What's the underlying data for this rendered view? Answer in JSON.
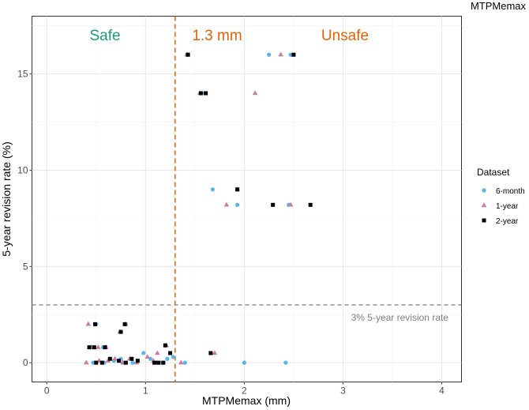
{
  "chart_data": {
    "type": "scatter",
    "title": "MTPMemax",
    "xlabel": "MTPMemax (mm)",
    "ylabel": "5-year revision rate (%)",
    "xlim": [
      -0.15,
      4.2
    ],
    "ylim": [
      -1.0,
      18.0
    ],
    "xticks": [
      0,
      1,
      2,
      3,
      4
    ],
    "yticks": [
      0,
      5,
      10,
      15
    ],
    "grid": true,
    "legend": {
      "title": "Dataset",
      "position": "right",
      "entries": [
        {
          "name": "6-month",
          "shape": "circle",
          "color": "#56B4E9"
        },
        {
          "name": "1-year",
          "shape": "triangle",
          "color": "#CC79A7"
        },
        {
          "name": "2-year",
          "shape": "square",
          "color": "#000000"
        }
      ]
    },
    "annotations": {
      "threshold_x": 1.3,
      "threshold_label": "1.3 mm",
      "threshold_color": "#E66100",
      "safe_label": "Safe",
      "safe_color": "#1A9E77",
      "unsafe_label": "Unsafe",
      "unsafe_color": "#E66100",
      "hline_y": 3,
      "hline_label": "3% 5-year revision rate",
      "hline_color": "#7f7f7f"
    },
    "series": [
      {
        "name": "6-month",
        "x": [
          2.25,
          2.47,
          1.42,
          1.57,
          1.68,
          1.93,
          1.93,
          2.45,
          0.5,
          0.8,
          0.44,
          0.57,
          0.47,
          0.75,
          0.98,
          1.22,
          0.58,
          0.77,
          0.68,
          0.87,
          1.05,
          1.15,
          1.28,
          1.4,
          2.0,
          2.42
        ],
        "y": [
          16.0,
          16.0,
          16.0,
          14.0,
          9.0,
          9.0,
          8.2,
          8.2,
          2.0,
          2.0,
          0.8,
          0.8,
          0.0,
          0.2,
          0.5,
          0.2,
          0.0,
          0.0,
          0.1,
          0.0,
          0.2,
          0.0,
          0.3,
          0.0,
          0.0,
          0.0
        ]
      },
      {
        "name": "1-year",
        "x": [
          1.42,
          2.37,
          1.55,
          2.11,
          1.93,
          1.82,
          2.47,
          0.42,
          0.8,
          0.74,
          0.45,
          0.52,
          0.6,
          0.4,
          0.53,
          0.62,
          0.69,
          0.77,
          0.84,
          0.91,
          1.02,
          1.08,
          1.12,
          1.21,
          1.36,
          1.7
        ],
        "y": [
          16.0,
          16.0,
          14.0,
          14.0,
          9.0,
          8.2,
          8.2,
          2.0,
          2.0,
          1.6,
          0.8,
          0.8,
          0.8,
          0.0,
          0.1,
          0.1,
          0.2,
          0.0,
          0.2,
          0.0,
          0.3,
          0.1,
          0.5,
          0.9,
          0.0,
          0.5
        ]
      },
      {
        "name": "2-year",
        "x": [
          1.43,
          2.5,
          1.56,
          1.61,
          1.93,
          2.29,
          2.67,
          0.49,
          0.79,
          0.75,
          0.43,
          0.48,
          0.59,
          0.5,
          0.56,
          0.64,
          0.73,
          0.8,
          0.86,
          0.92,
          1.09,
          1.13,
          1.18,
          1.2,
          1.25,
          1.66
        ],
        "y": [
          16.0,
          16.0,
          14.0,
          14.0,
          9.0,
          8.2,
          8.2,
          2.0,
          2.0,
          1.6,
          0.8,
          0.8,
          0.8,
          0.0,
          0.0,
          0.2,
          0.1,
          0.0,
          0.2,
          0.1,
          0.0,
          0.0,
          0.0,
          0.9,
          0.5,
          0.5
        ]
      }
    ]
  }
}
